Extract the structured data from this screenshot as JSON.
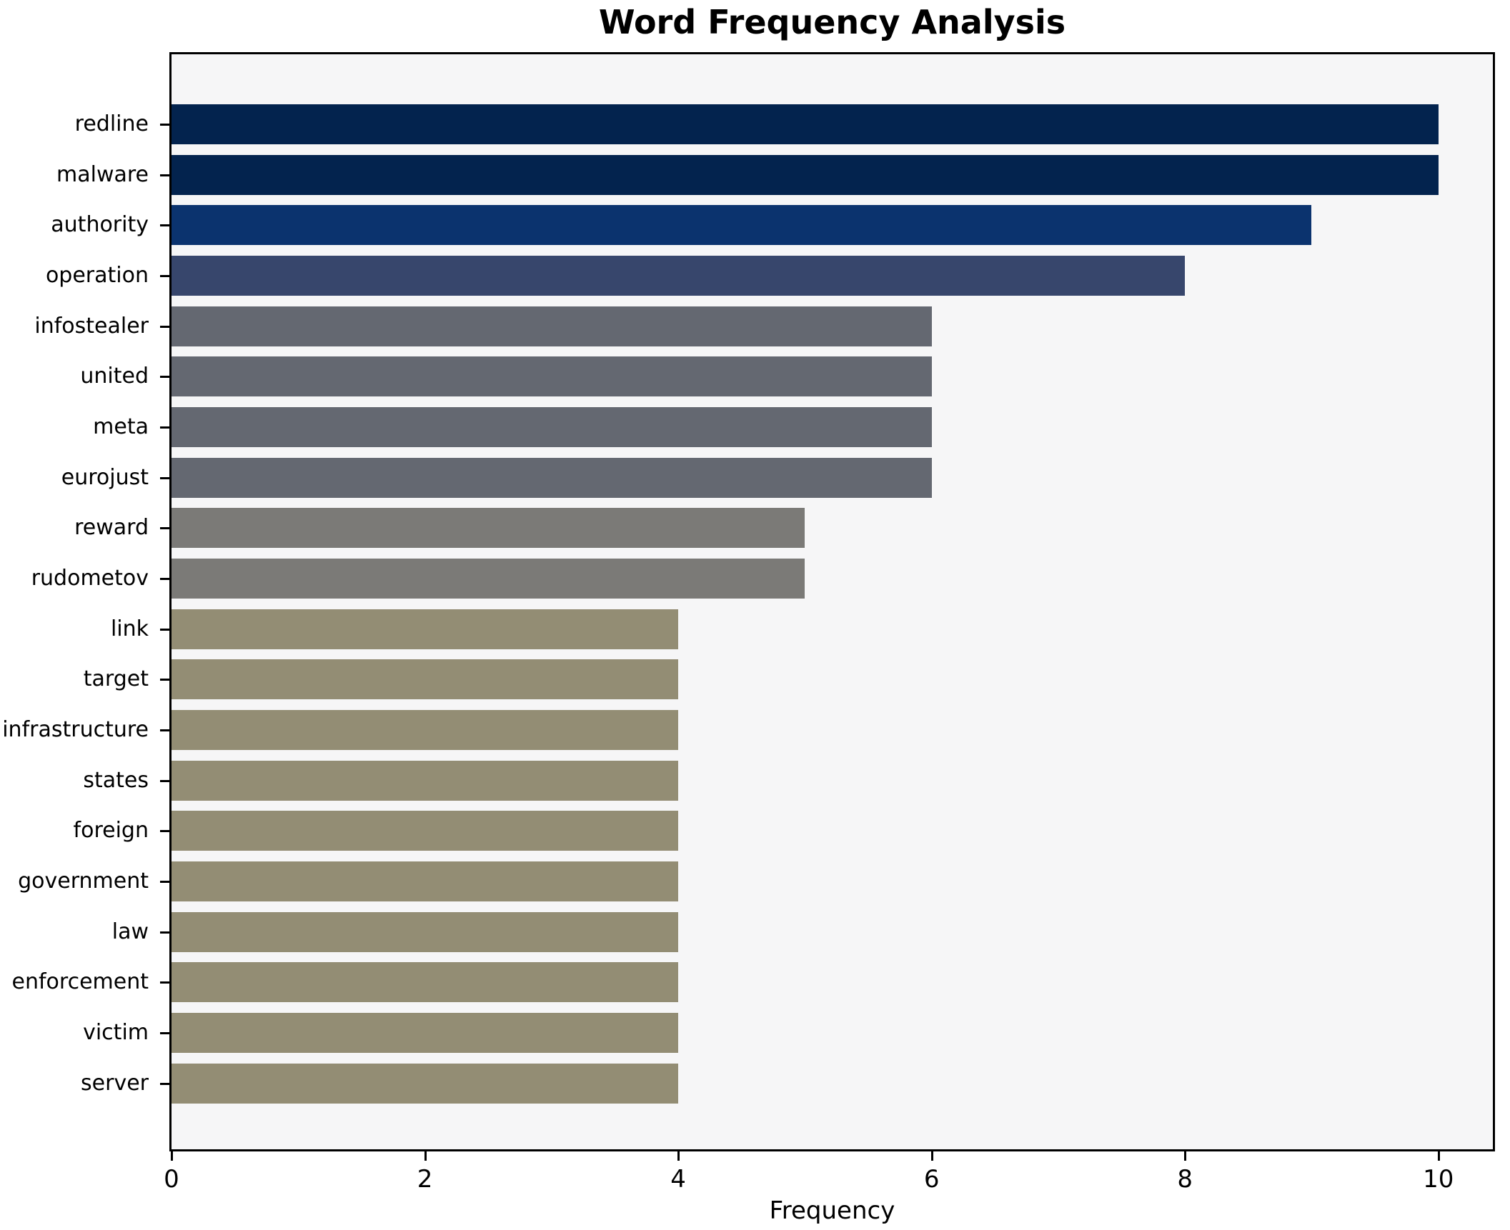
{
  "figure": {
    "title": "Word Frequency Analysis",
    "xlabel": "Frequency",
    "background_color": "#ffffff",
    "plot_background_color": "#f6f6f7",
    "spine_color": "#000000",
    "text_color": "#000000"
  },
  "chart_data": {
    "type": "bar",
    "orientation": "horizontal",
    "title": "Word Frequency Analysis",
    "xlabel": "Frequency",
    "ylabel": "",
    "categories": [
      "redline",
      "malware",
      "authority",
      "operation",
      "infostealer",
      "united",
      "meta",
      "eurojust",
      "reward",
      "rudometov",
      "link",
      "target",
      "infrastructure",
      "states",
      "foreign",
      "government",
      "law",
      "enforcement",
      "victim",
      "server"
    ],
    "values": [
      10,
      10,
      9,
      8,
      6,
      6,
      6,
      6,
      5,
      5,
      4,
      4,
      4,
      4,
      4,
      4,
      4,
      4,
      4,
      4
    ],
    "bar_colors": [
      "#03234e",
      "#03234e",
      "#0b336e",
      "#37466c",
      "#646871",
      "#646871",
      "#646871",
      "#646871",
      "#7b7a77",
      "#7b7a77",
      "#938d74",
      "#938d74",
      "#938d74",
      "#938d74",
      "#938d74",
      "#938d74",
      "#938d74",
      "#938d74",
      "#938d74",
      "#938d74"
    ],
    "xlim": [
      0,
      10.43
    ],
    "xticks": [
      0,
      2,
      4,
      6,
      8,
      10
    ],
    "grid": false,
    "legend": false
  }
}
